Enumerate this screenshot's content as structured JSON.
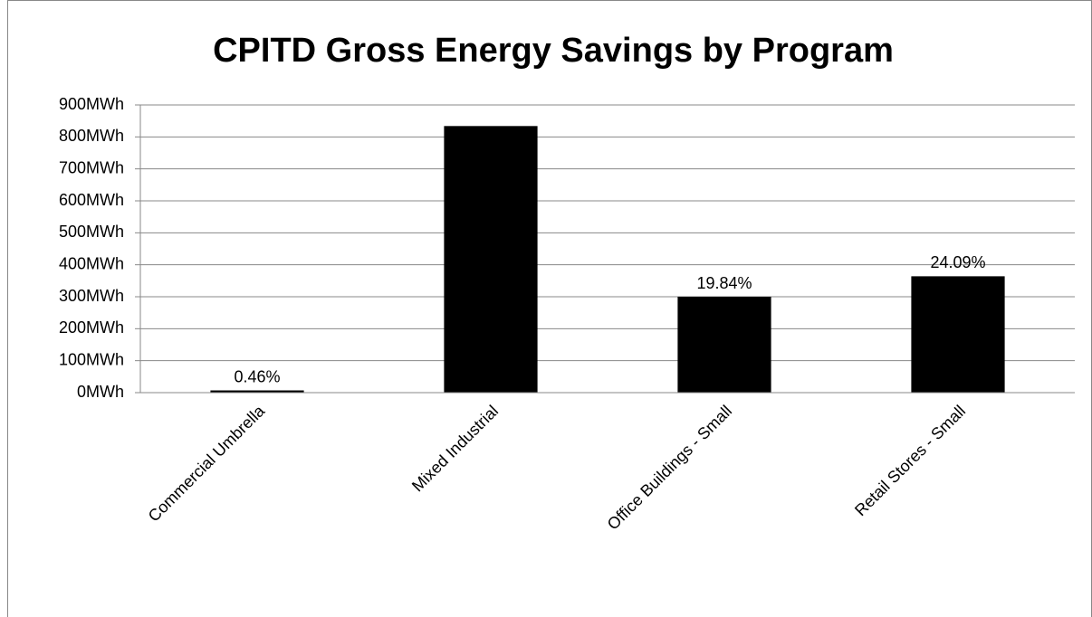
{
  "chart_data": {
    "type": "bar",
    "title": "CPITD Gross Energy Savings by Program",
    "categories": [
      "Commercial Umbrella",
      "Mixed Industrial",
      "Office Buildings - Small",
      "Retail Stores - Small"
    ],
    "values": [
      7,
      834,
      300,
      364
    ],
    "share_labels": [
      "0.46%",
      null,
      "19.84%",
      "24.09%"
    ],
    "color": "#000000",
    "ylim": [
      0,
      900
    ],
    "yticks": [
      {
        "value": 0,
        "label": "0MWh"
      },
      {
        "value": 100,
        "label": "100MWh"
      },
      {
        "value": 200,
        "label": "200MWh"
      },
      {
        "value": 300,
        "label": "300MWh"
      },
      {
        "value": 400,
        "label": "400MWh"
      },
      {
        "value": 500,
        "label": "500MWh"
      },
      {
        "value": 600,
        "label": "600MWh"
      },
      {
        "value": 700,
        "label": "700MWh"
      },
      {
        "value": 800,
        "label": "800MWh"
      },
      {
        "value": 900,
        "label": "900MWh"
      }
    ],
    "grid": true
  }
}
